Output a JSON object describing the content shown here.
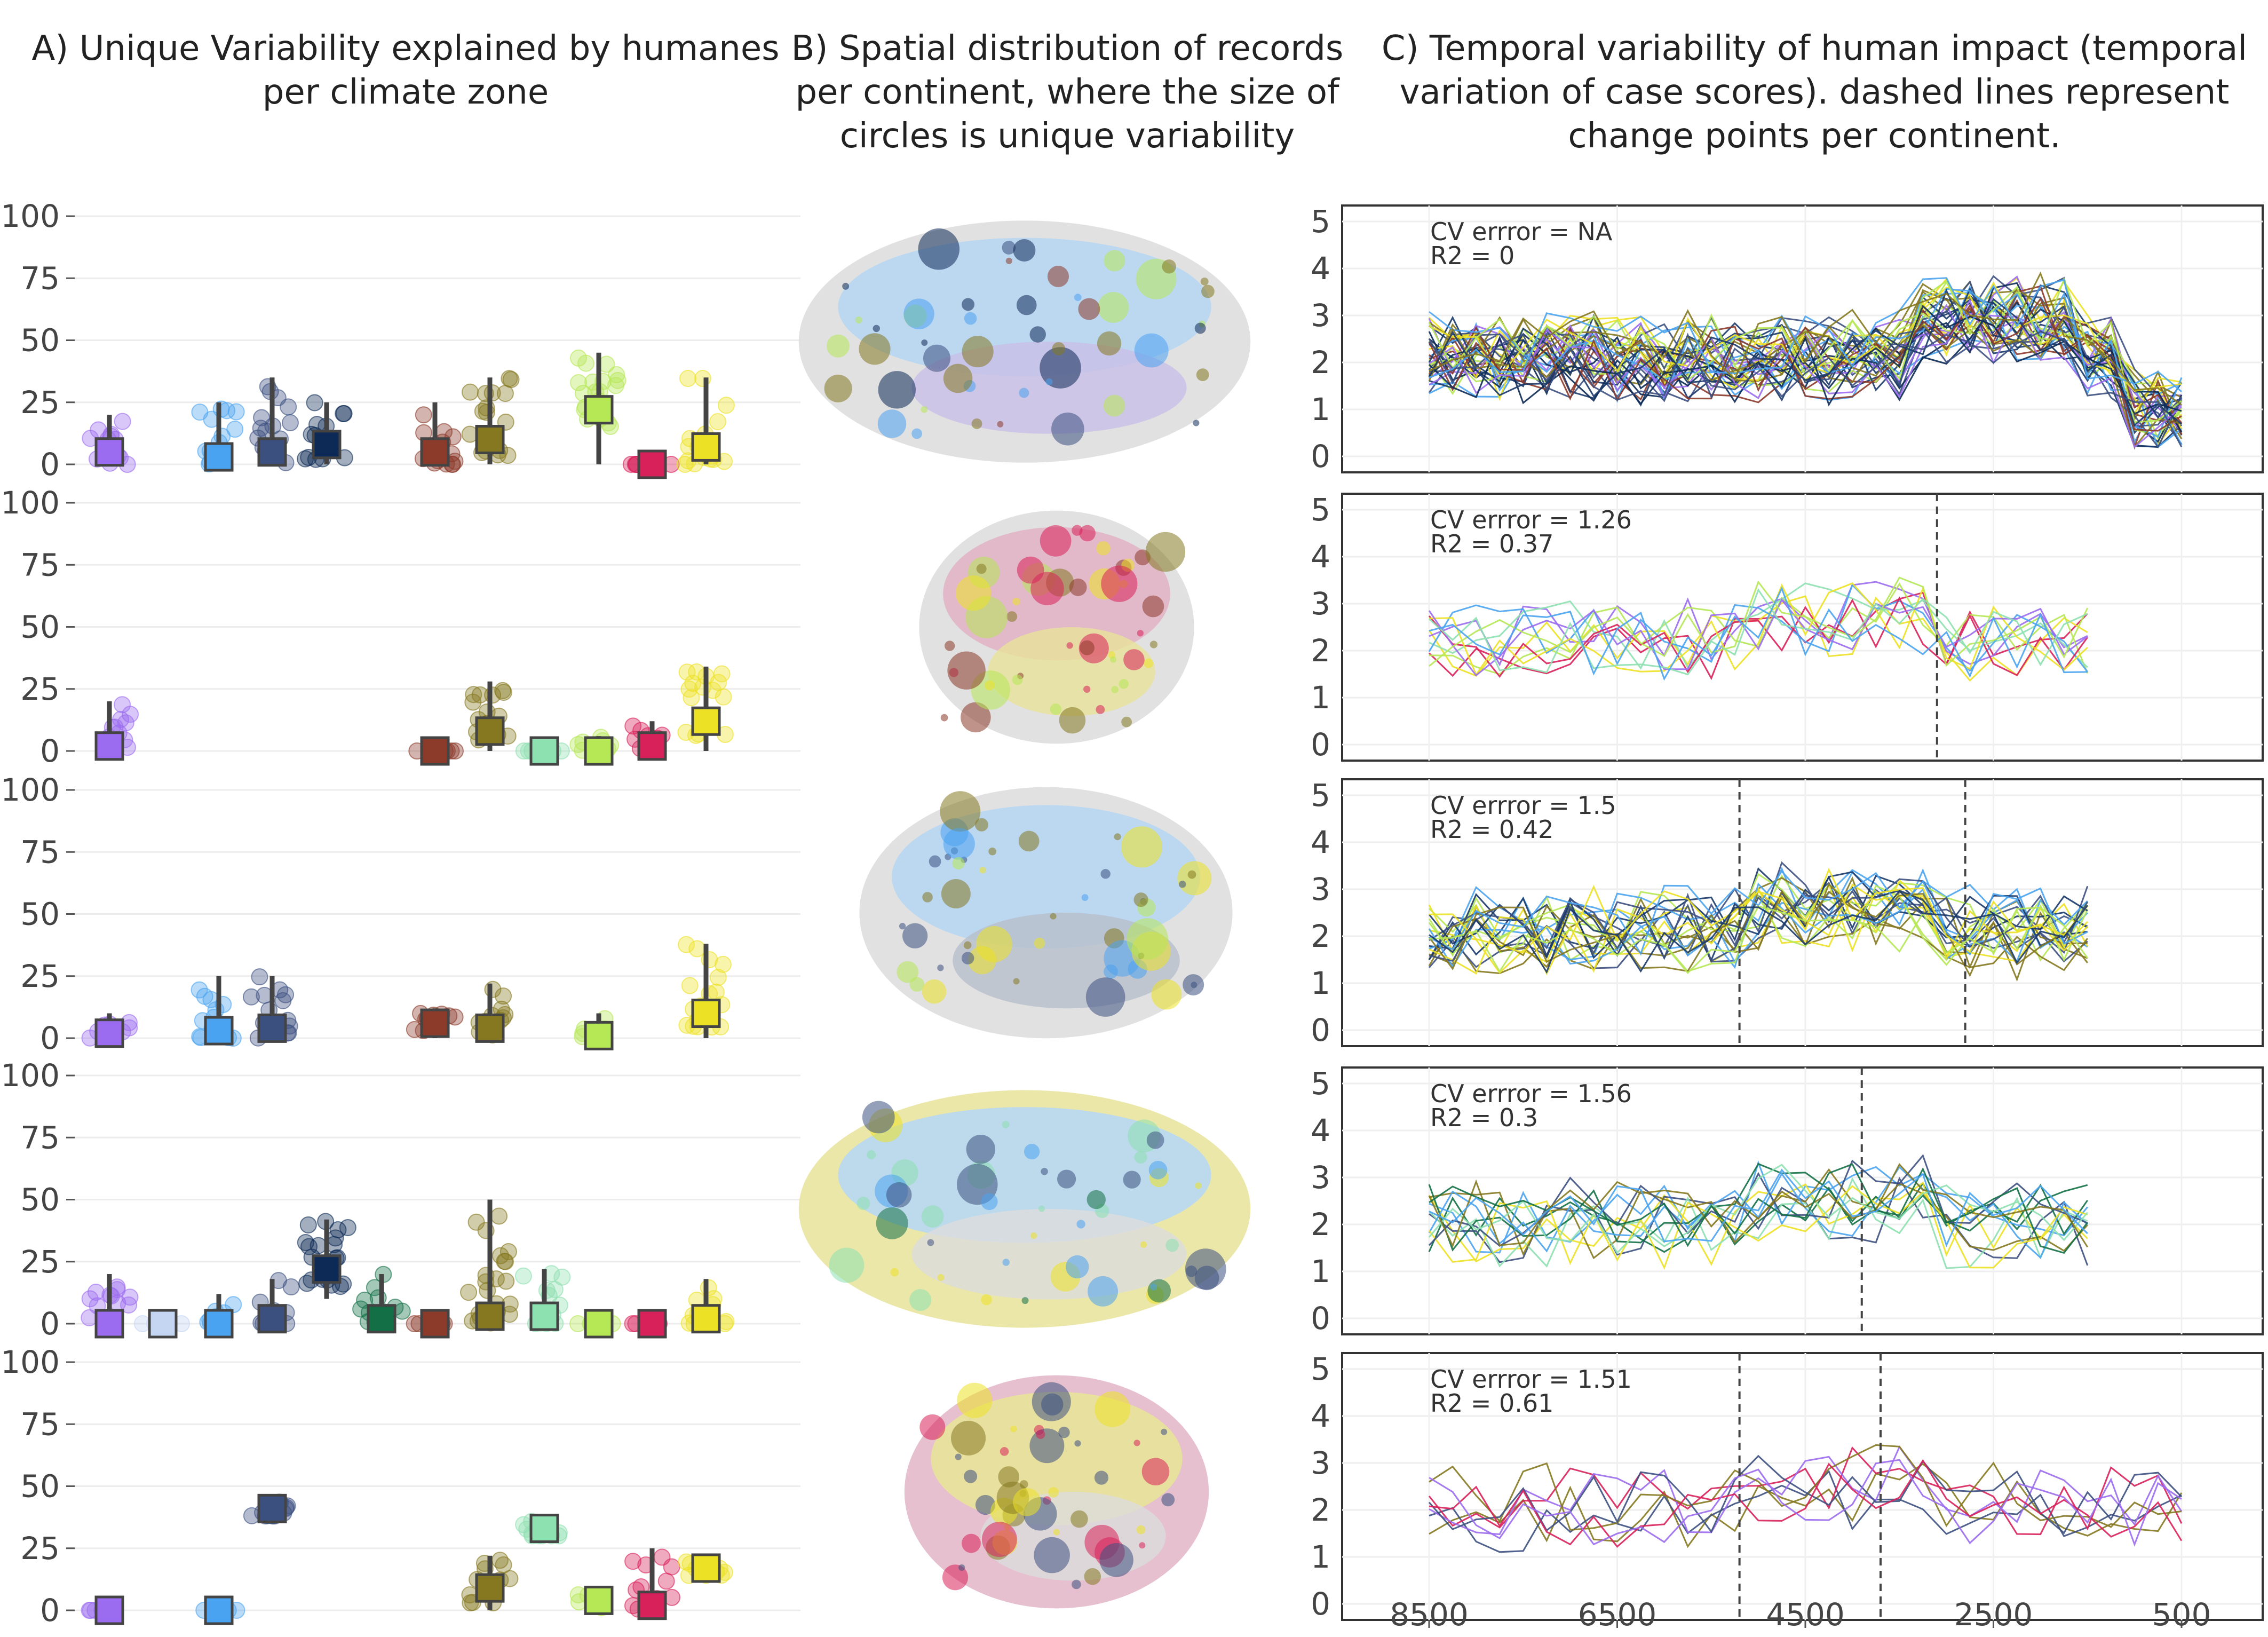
{
  "titles": {
    "A": "A) Unique Variability explained by humanes per climate zone",
    "B": "B) Spatial distribution of records per continent, where the size of circles is unique variability",
    "C": "C) Temporal variability of human impact (temporal variation of case scores). dashed lines represent change points per continent."
  },
  "colors": {
    "zone_colors": [
      "#9b6bf0",
      "#c5d6f2",
      "#4aa3f0",
      "#3c5080",
      "#0c2a55",
      "#137046",
      "#8c3a2a",
      "#857820",
      "#8de0b0",
      "#b6e855",
      "#d8205a",
      "#ede125"
    ],
    "land_grey": "#dcdcdc",
    "ink": "#444444"
  },
  "chart_data": [
    {
      "type": "box",
      "panel": "A",
      "ylim": [
        0,
        100
      ],
      "yticks": [
        "0",
        "25",
        "50",
        "75",
        "100"
      ],
      "rows": [
        {
          "boxes": [
            {
              "zone": 0,
              "median": 5,
              "q1": 0,
              "q3": 10,
              "min": 0,
              "max": 20
            },
            {
              "zone": 2,
              "median": 3,
              "q1": 0,
              "q3": 8,
              "min": 0,
              "max": 25
            },
            {
              "zone": 3,
              "median": 5,
              "q1": 0,
              "q3": 12,
              "min": 0,
              "max": 35
            },
            {
              "zone": 4,
              "median": 8,
              "q1": 2,
              "q3": 14,
              "min": 0,
              "max": 25
            },
            {
              "zone": 6,
              "median": 5,
              "q1": 0,
              "q3": 10,
              "min": 0,
              "max": 25
            },
            {
              "zone": 7,
              "median": 10,
              "q1": 3,
              "q3": 18,
              "min": 0,
              "max": 35
            },
            {
              "zone": 9,
              "median": 22,
              "q1": 15,
              "q3": 28,
              "min": 0,
              "max": 45
            },
            {
              "zone": 10,
              "median": 0,
              "q1": 0,
              "q3": 0,
              "min": 0,
              "max": 0
            },
            {
              "zone": 11,
              "median": 7,
              "q1": 0,
              "q3": 14,
              "min": 0,
              "max": 35
            }
          ]
        },
        {
          "boxes": [
            {
              "zone": 0,
              "median": 2,
              "q1": 0,
              "q3": 5,
              "min": 0,
              "max": 20
            },
            {
              "zone": 6,
              "median": 0,
              "q1": 0,
              "q3": 0,
              "min": 0,
              "max": 0
            },
            {
              "zone": 7,
              "median": 8,
              "q1": 3,
              "q3": 14,
              "min": 0,
              "max": 28
            },
            {
              "zone": 8,
              "median": 0,
              "q1": 0,
              "q3": 0,
              "min": 0,
              "max": 0
            },
            {
              "zone": 9,
              "median": 0,
              "q1": 0,
              "q3": 3,
              "min": 0,
              "max": 6
            },
            {
              "zone": 10,
              "median": 2,
              "q1": 0,
              "q3": 6,
              "min": 0,
              "max": 12
            },
            {
              "zone": 11,
              "median": 12,
              "q1": 6,
              "q3": 20,
              "min": 0,
              "max": 34
            }
          ]
        },
        {
          "boxes": [
            {
              "zone": 0,
              "median": 2,
              "q1": 0,
              "q3": 5,
              "min": 0,
              "max": 10
            },
            {
              "zone": 2,
              "median": 3,
              "q1": 0,
              "q3": 9,
              "min": 0,
              "max": 25
            },
            {
              "zone": 3,
              "median": 4,
              "q1": 0,
              "q3": 10,
              "min": 0,
              "max": 25
            },
            {
              "zone": 6,
              "median": 6,
              "q1": 3,
              "q3": 10,
              "min": 0,
              "max": 12
            },
            {
              "zone": 7,
              "median": 4,
              "q1": 0,
              "q3": 10,
              "min": 0,
              "max": 22
            },
            {
              "zone": 9,
              "median": 1,
              "q1": 0,
              "q3": 4,
              "min": 0,
              "max": 10
            },
            {
              "zone": 11,
              "median": 10,
              "q1": 4,
              "q3": 18,
              "min": 0,
              "max": 38
            }
          ]
        },
        {
          "boxes": [
            {
              "zone": 0,
              "median": 0,
              "q1": 0,
              "q3": 3,
              "min": 0,
              "max": 20
            },
            {
              "zone": 1,
              "median": 0,
              "q1": 0,
              "q3": 0,
              "min": 0,
              "max": 0
            },
            {
              "zone": 2,
              "median": 0,
              "q1": 0,
              "q3": 2,
              "min": 0,
              "max": 12
            },
            {
              "zone": 3,
              "median": 2,
              "q1": 0,
              "q3": 10,
              "min": 0,
              "max": 18
            },
            {
              "zone": 4,
              "median": 22,
              "q1": 15,
              "q3": 28,
              "min": 10,
              "max": 42
            },
            {
              "zone": 5,
              "median": 2,
              "q1": 0,
              "q3": 6,
              "min": 0,
              "max": 20
            },
            {
              "zone": 6,
              "median": 0,
              "q1": 0,
              "q3": 0,
              "min": 0,
              "max": 0
            },
            {
              "zone": 7,
              "median": 3,
              "q1": 0,
              "q3": 10,
              "min": 0,
              "max": 50
            },
            {
              "zone": 8,
              "median": 3,
              "q1": 0,
              "q3": 10,
              "min": 0,
              "max": 22
            },
            {
              "zone": 9,
              "median": 0,
              "q1": 0,
              "q3": 0,
              "min": 0,
              "max": 0
            },
            {
              "zone": 10,
              "median": 0,
              "q1": 0,
              "q3": 0,
              "min": 0,
              "max": 0
            },
            {
              "zone": 11,
              "median": 2,
              "q1": 0,
              "q3": 8,
              "min": 0,
              "max": 18
            }
          ]
        },
        {
          "boxes": [
            {
              "zone": 0,
              "median": 0,
              "q1": 0,
              "q3": 0,
              "min": 0,
              "max": 0
            },
            {
              "zone": 2,
              "median": 0,
              "q1": 0,
              "q3": 0,
              "min": 0,
              "max": 0
            },
            {
              "zone": 3,
              "median": 41,
              "q1": 38,
              "q3": 44,
              "min": 38,
              "max": 44
            },
            {
              "zone": 7,
              "median": 9,
              "q1": 3,
              "q3": 16,
              "min": 0,
              "max": 22
            },
            {
              "zone": 8,
              "median": 33,
              "q1": 30,
              "q3": 36,
              "min": 30,
              "max": 36
            },
            {
              "zone": 9,
              "median": 4,
              "q1": 1,
              "q3": 7,
              "min": 0,
              "max": 7
            },
            {
              "zone": 10,
              "median": 2,
              "q1": 0,
              "q3": 8,
              "min": 0,
              "max": 25
            },
            {
              "zone": 11,
              "median": 17,
              "q1": 14,
              "q3": 20,
              "min": 14,
              "max": 20
            }
          ]
        }
      ]
    },
    {
      "type": "line",
      "panel": "C",
      "xticks": [
        "8500",
        "6500",
        "4500",
        "2500",
        "500"
      ],
      "xlim": [
        9000,
        0
      ],
      "ylim": [
        0,
        5
      ],
      "yticks": [
        "0",
        "1",
        "2",
        "3",
        "4",
        "5"
      ],
      "subpanels": [
        {
          "cv_label": "CV errror = NA",
          "r2_label": "R2 = 0",
          "changepoints": []
        },
        {
          "cv_label": "CV errror = 1.26",
          "r2_label": "R2 = 0.37",
          "changepoints": [
            3100
          ]
        },
        {
          "cv_label": "CV errror = 1.5",
          "r2_label": "R2 = 0.42",
          "changepoints": [
            5200,
            2800
          ]
        },
        {
          "cv_label": "CV errror = 1.56",
          "r2_label": "R2 = 0.3",
          "changepoints": [
            3900
          ]
        },
        {
          "cv_label": "CV errror = 1.51",
          "r2_label": "R2 = 0.61",
          "changepoints": [
            5200,
            3700
          ]
        }
      ]
    }
  ]
}
